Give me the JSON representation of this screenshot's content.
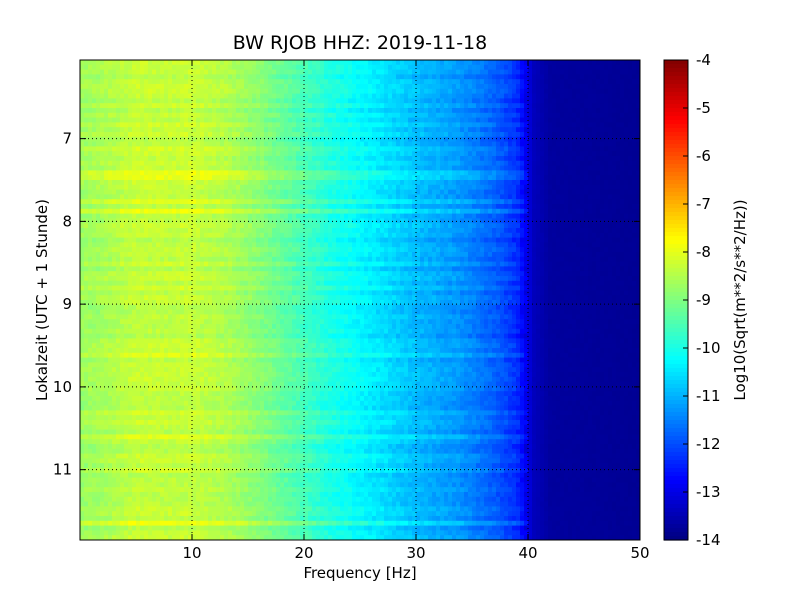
{
  "chart_data": {
    "type": "heatmap",
    "title": "BW RJOB HHZ: 2019-11-18",
    "xlabel": "Frequency [Hz]",
    "ylabel": "Lokalzeit (UTC + 1 Stunde)",
    "xlim": [
      0,
      50
    ],
    "ylim": [
      6.05,
      11.85
    ],
    "y_inverted": true,
    "x_ticks": [
      10,
      20,
      30,
      40,
      50
    ],
    "y_ticks": [
      7,
      8,
      9,
      10,
      11
    ],
    "grid": true,
    "colorbar": {
      "label": "Log10(Sqrt(m**2/s**2/Hz))",
      "range": [
        -14,
        -4
      ],
      "ticks": [
        -4,
        -5,
        -6,
        -7,
        -8,
        -9,
        -10,
        -11,
        -12,
        -13,
        -14
      ],
      "colormap": "jet"
    },
    "frequency_profile": {
      "frequency_hz": [
        0,
        2,
        5,
        8,
        10,
        13,
        16,
        19,
        22,
        26,
        30,
        34,
        37,
        39,
        40.5,
        42,
        50
      ],
      "log10_psd": [
        -8.7,
        -8.6,
        -8.3,
        -8.35,
        -8.3,
        -8.5,
        -8.9,
        -9.4,
        -9.9,
        -10.4,
        -10.9,
        -11.3,
        -11.8,
        -12.3,
        -13.4,
        -13.7,
        -13.8
      ]
    },
    "hourly_tick_labels": [
      "7",
      "8",
      "9",
      "10",
      "11"
    ],
    "x_tick_labels": [
      "10",
      "20",
      "30",
      "40",
      "50"
    ],
    "colorbar_tick_labels": [
      "-4",
      "-5",
      "-6",
      "-7",
      "-8",
      "-9",
      "-10",
      "-11",
      "-12",
      "-13",
      "-14"
    ]
  }
}
